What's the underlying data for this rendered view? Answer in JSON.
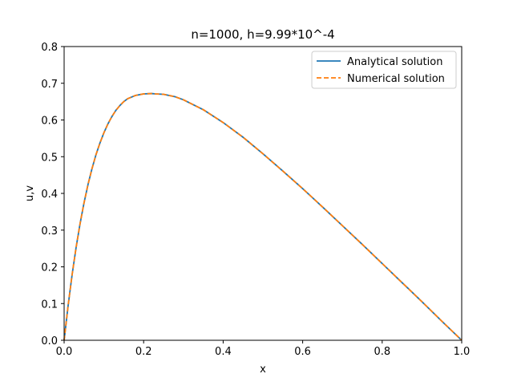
{
  "chart_data": {
    "type": "line",
    "title": "n=1000, h=9.99*10^-4",
    "xlabel": "x",
    "ylabel": "u,v",
    "xlim": [
      0.0,
      1.0
    ],
    "ylim": [
      0.0,
      0.8
    ],
    "xticks": [
      "0.0",
      "0.2",
      "0.4",
      "0.6",
      "0.8",
      "1.0"
    ],
    "yticks": [
      "0.0",
      "0.1",
      "0.2",
      "0.3",
      "0.4",
      "0.5",
      "0.6",
      "0.7",
      "0.8"
    ],
    "grid": false,
    "legend_position": "top-right",
    "x": [
      0.0,
      0.01,
      0.02,
      0.03,
      0.04,
      0.05,
      0.06,
      0.07,
      0.08,
      0.09,
      0.1,
      0.11,
      0.12,
      0.13,
      0.14,
      0.15,
      0.16,
      0.18,
      0.2,
      0.22,
      0.23,
      0.25,
      0.28,
      0.3,
      0.35,
      0.4,
      0.45,
      0.5,
      0.55,
      0.6,
      0.65,
      0.7,
      0.75,
      0.8,
      0.85,
      0.9,
      0.95,
      1.0
    ],
    "series": [
      {
        "name": "Analytical solution",
        "color": "#1f77b4",
        "style": "solid",
        "values": [
          0.0,
          0.094,
          0.178,
          0.252,
          0.317,
          0.374,
          0.424,
          0.467,
          0.505,
          0.537,
          0.565,
          0.589,
          0.609,
          0.626,
          0.639,
          0.65,
          0.658,
          0.667,
          0.671,
          0.672,
          0.671,
          0.67,
          0.663,
          0.655,
          0.628,
          0.593,
          0.553,
          0.508,
          0.461,
          0.413,
          0.363,
          0.312,
          0.261,
          0.209,
          0.157,
          0.105,
          0.052,
          0.0
        ]
      },
      {
        "name": "Numerical solution",
        "color": "#ff7f0e",
        "style": "dashed",
        "values": [
          0.0,
          0.094,
          0.178,
          0.252,
          0.317,
          0.374,
          0.424,
          0.467,
          0.505,
          0.537,
          0.565,
          0.589,
          0.609,
          0.626,
          0.639,
          0.65,
          0.658,
          0.667,
          0.671,
          0.672,
          0.671,
          0.67,
          0.663,
          0.655,
          0.628,
          0.593,
          0.553,
          0.508,
          0.461,
          0.413,
          0.363,
          0.312,
          0.261,
          0.209,
          0.157,
          0.105,
          0.052,
          0.0
        ]
      }
    ]
  }
}
